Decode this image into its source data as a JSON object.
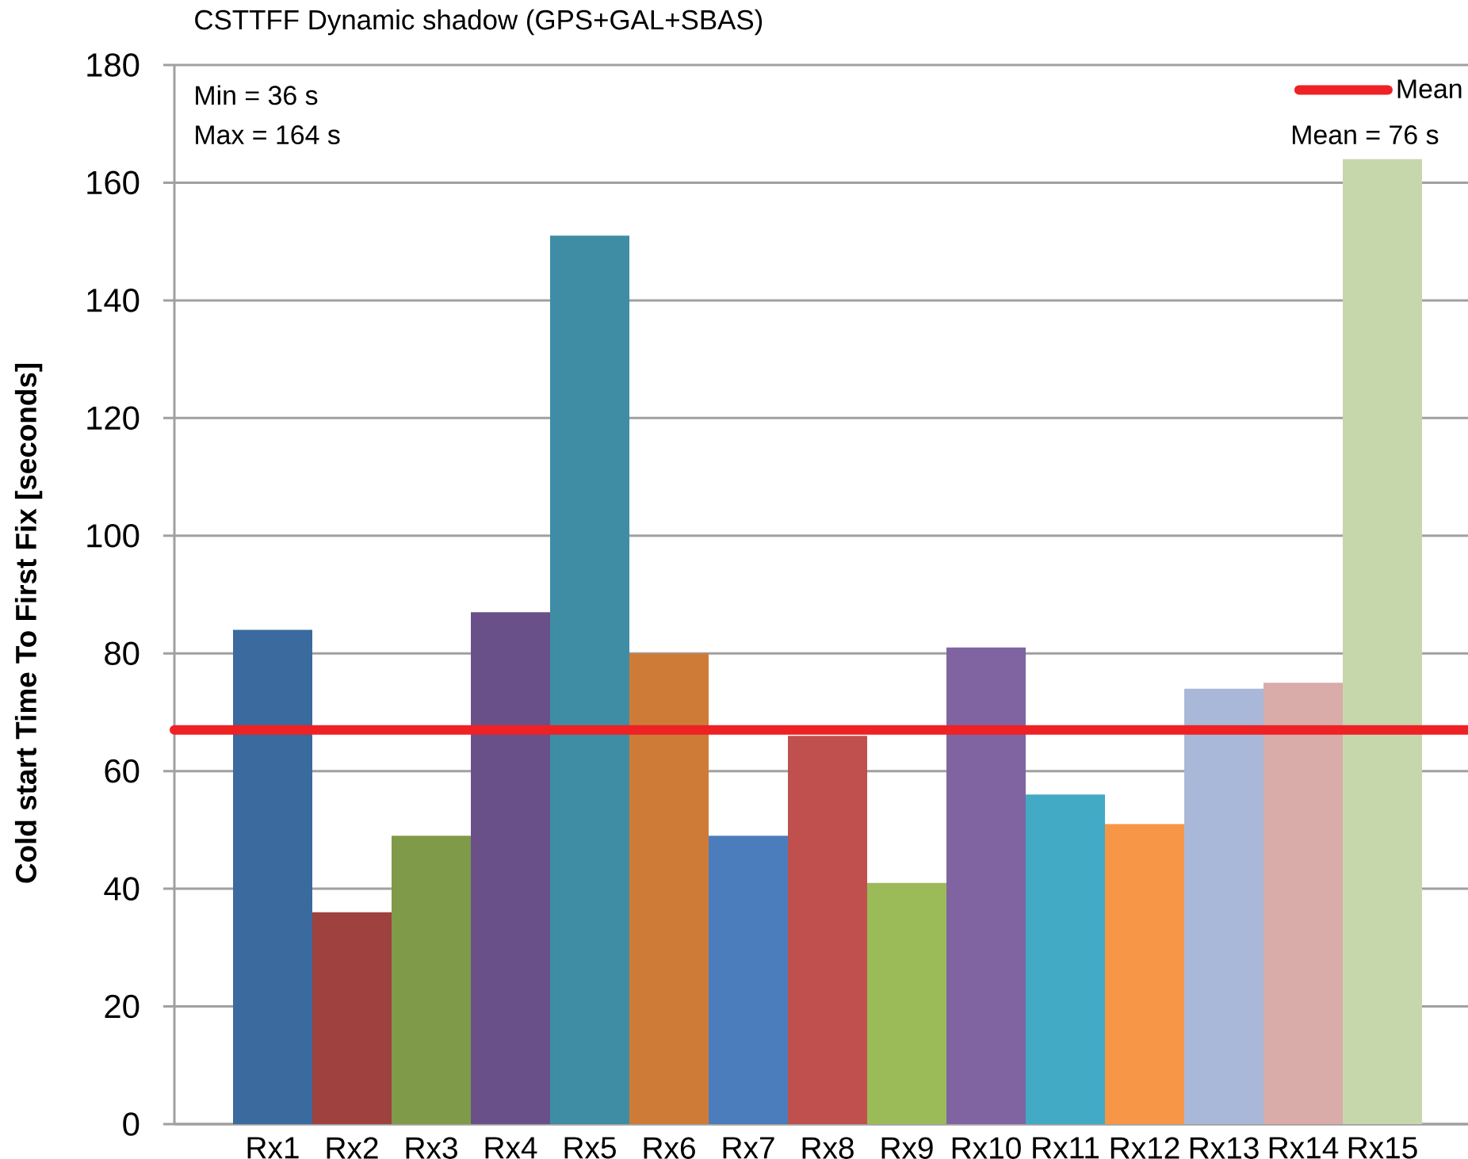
{
  "chart_data": {
    "type": "bar",
    "title": "CSTTFF Dynamic shadow (GPS+GAL+SBAS)",
    "ylabel": "Cold start Time To First Fix [seconds]",
    "categories": [
      "Rx1",
      "Rx2",
      "Rx3",
      "Rx4",
      "Rx5",
      "Rx6",
      "Rx7",
      "Rx8",
      "Rx9",
      "Rx10",
      "Rx11",
      "Rx12",
      "Rx13",
      "Rx14",
      "Rx15"
    ],
    "values": [
      84,
      36,
      49,
      87,
      151,
      80,
      49,
      66,
      41,
      81,
      56,
      51,
      74,
      75,
      164
    ],
    "colors": [
      "#3a6a9e",
      "#9e413f",
      "#7f9a48",
      "#6a5088",
      "#3f8da4",
      "#cf7b38",
      "#4b7dbd",
      "#c0504d",
      "#9bbb59",
      "#8064a2",
      "#43aac5",
      "#f79646",
      "#a9b8d8",
      "#d9aba9",
      "#c7d7ac"
    ],
    "ylim": [
      0,
      180
    ],
    "yticks": [
      0,
      20,
      40,
      60,
      80,
      100,
      120,
      140,
      160,
      180
    ],
    "grid": "y",
    "ref_lines": [
      {
        "axis": "y",
        "value": 67,
        "label": "Mean",
        "color": "#ee2125"
      }
    ],
    "legend": "top right",
    "annotations": [
      "Min = 36 s",
      "Max = 164 s",
      "Mean = 76 s"
    ]
  }
}
